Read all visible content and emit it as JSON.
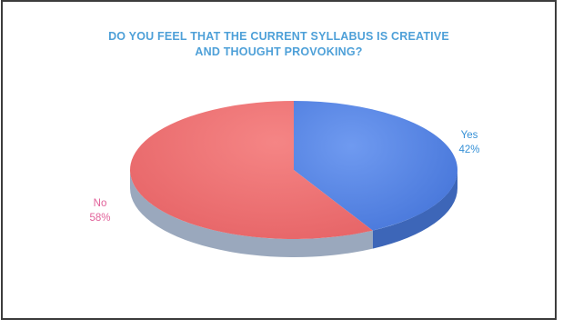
{
  "chart_data": {
    "type": "pie",
    "title_lines": [
      "DO YOU FEEL THAT THE CURRENT SYLLABUS IS CREATIVE",
      "AND THOUGHT PROVOKING?"
    ],
    "labels": [
      "Yes",
      "No"
    ],
    "values": [
      42,
      58
    ],
    "value_labels": [
      "42%",
      "58%"
    ],
    "colors": [
      "#4f81e0",
      "#ee6b6e"
    ],
    "label_colors": [
      "#3590d6",
      "#e1629a"
    ],
    "style": "3d",
    "legend": "none"
  }
}
